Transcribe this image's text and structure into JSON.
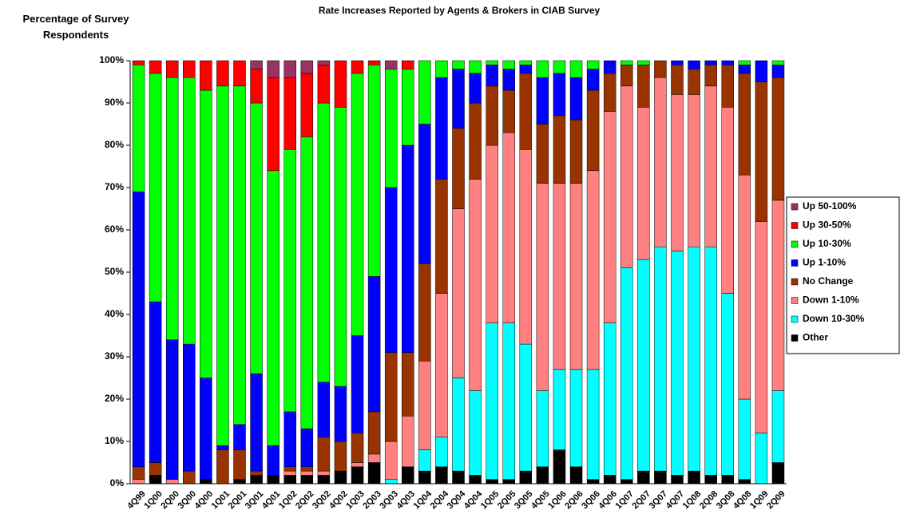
{
  "chart_data": {
    "type": "stacked-bar",
    "title": "Rate Increases Reported by Agents & Brokers in CIAB Survey",
    "y_label": "Percentage of Survey Respondents",
    "categories": [
      "4Q99",
      "1Q00",
      "2Q00",
      "3Q00",
      "4Q00",
      "1Q01",
      "2Q01",
      "3Q01",
      "4Q01",
      "1Q02",
      "2Q02",
      "3Q02",
      "4Q02",
      "1Q03",
      "2Q03",
      "3Q03",
      "4Q03",
      "1Q04",
      "2Q04",
      "3Q04",
      "4Q04",
      "1Q05",
      "2Q05",
      "3Q05",
      "4Q05",
      "1Q06",
      "2Q06",
      "3Q06",
      "4Q06",
      "1Q07",
      "2Q07",
      "3Q07",
      "4Q07",
      "1Q08",
      "2Q08",
      "3Q08",
      "4Q08",
      "1Q09",
      "2Q09"
    ],
    "series": [
      {
        "name": "Other",
        "color": "#000000",
        "values": [
          0,
          2,
          0,
          0,
          1,
          0,
          1,
          2,
          2,
          2,
          2,
          2,
          3,
          4,
          5,
          0,
          4,
          3,
          4,
          3,
          2,
          1,
          1,
          3,
          4,
          8,
          4,
          1,
          2,
          1,
          3,
          3,
          2,
          3,
          2,
          2,
          1,
          0,
          5
        ]
      },
      {
        "name": "Down 10-30%",
        "color": "#00ffff",
        "values": [
          0,
          0,
          0,
          0,
          0,
          0,
          0,
          0,
          0,
          0,
          0,
          0,
          0,
          0,
          0,
          1,
          0,
          5,
          7,
          22,
          20,
          37,
          37,
          30,
          18,
          19,
          23,
          26,
          36,
          50,
          50,
          53,
          53,
          53,
          54,
          43,
          19,
          12,
          17
        ]
      },
      {
        "name": "Down 1-10%",
        "color": "#ff8080",
        "values": [
          1,
          0,
          1,
          0,
          0,
          0,
          0,
          0,
          0,
          1,
          1,
          1,
          0,
          1,
          2,
          9,
          12,
          21,
          34,
          40,
          50,
          42,
          45,
          46,
          49,
          44,
          44,
          47,
          50,
          43,
          36,
          40,
          37,
          36,
          38,
          44,
          53,
          50,
          45
        ]
      },
      {
        "name": "No Change",
        "color": "#993300",
        "values": [
          3,
          3,
          0,
          3,
          0,
          8,
          7,
          1,
          0,
          1,
          1,
          8,
          7,
          7,
          10,
          21,
          15,
          23,
          27,
          19,
          18,
          14,
          10,
          18,
          14,
          16,
          15,
          19,
          9,
          5,
          10,
          4,
          7,
          6,
          5,
          10,
          24,
          33,
          29
        ]
      },
      {
        "name": "Up 1-10%",
        "color": "#0000ff",
        "values": [
          65,
          38,
          33,
          30,
          24,
          1,
          6,
          23,
          7,
          13,
          9,
          13,
          13,
          23,
          32,
          39,
          49,
          33,
          24,
          14,
          7,
          5,
          5,
          2,
          11,
          10,
          10,
          5,
          3,
          0,
          0,
          0,
          1,
          2,
          1,
          1,
          2,
          5,
          3
        ]
      },
      {
        "name": "Up 10-30%",
        "color": "#00ff00",
        "values": [
          30,
          54,
          62,
          63,
          68,
          85,
          80,
          64,
          65,
          62,
          69,
          66,
          66,
          62,
          50,
          28,
          18,
          15,
          4,
          2,
          3,
          1,
          2,
          1,
          4,
          3,
          4,
          2,
          0,
          1,
          1,
          0,
          0,
          0,
          0,
          0,
          1,
          0,
          1
        ]
      },
      {
        "name": "Up 30-50%",
        "color": "#ff0000",
        "values": [
          1,
          3,
          4,
          4,
          7,
          6,
          6,
          8,
          22,
          17,
          15,
          9,
          11,
          3,
          1,
          0,
          2,
          0,
          0,
          0,
          0,
          0,
          0,
          0,
          0,
          0,
          0,
          0,
          0,
          0,
          0,
          0,
          0,
          0,
          0,
          0,
          0,
          0,
          0
        ]
      },
      {
        "name": "Up 50-100%",
        "color": "#993366",
        "values": [
          0,
          0,
          0,
          0,
          0,
          0,
          0,
          2,
          4,
          4,
          3,
          1,
          0,
          0,
          0,
          2,
          0,
          0,
          0,
          0,
          0,
          0,
          0,
          0,
          0,
          0,
          0,
          0,
          0,
          0,
          0,
          0,
          0,
          0,
          0,
          0,
          0,
          0,
          0
        ]
      }
    ],
    "ylim": [
      0,
      100
    ],
    "yticks": [
      {
        "value": 0,
        "label": "0%"
      },
      {
        "value": 10,
        "label": "10%"
      },
      {
        "value": 20,
        "label": "20%"
      },
      {
        "value": 30,
        "label": "30%"
      },
      {
        "value": 40,
        "label": "40%"
      },
      {
        "value": 50,
        "label": "50%"
      },
      {
        "value": 60,
        "label": "60%"
      },
      {
        "value": 70,
        "label": "70%"
      },
      {
        "value": 80,
        "label": "80%"
      },
      {
        "value": 90,
        "label": "90%"
      },
      {
        "value": 100,
        "label": "100%"
      }
    ],
    "legend": "right"
  }
}
